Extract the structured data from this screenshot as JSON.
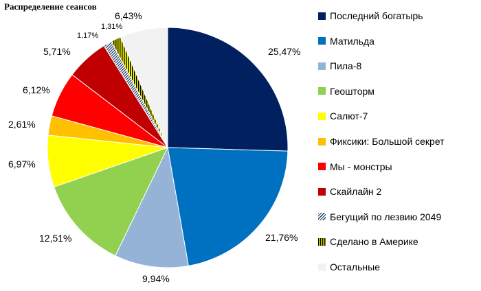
{
  "chart_data": {
    "type": "pie",
    "title": "Распределение сеансов",
    "labels": [
      "Последний богатырь",
      "Матильда",
      "Пила-8",
      "Геошторм",
      "Салют-7",
      "Фиксики: Большой секрет",
      "Мы - монстры",
      "Скайлайн 2",
      "Бегущий по лезвию 2049",
      "Сделано в Америке",
      "Остальные"
    ],
    "values": [
      25.47,
      21.76,
      9.94,
      12.51,
      6.97,
      2.61,
      6.12,
      5.71,
      1.17,
      1.31,
      6.43
    ],
    "value_labels": [
      "25,47%",
      "21,76%",
      "9,94%",
      "12,51%",
      "6,97%",
      "2,61%",
      "6,12%",
      "5,71%",
      "1,17%",
      "1,31%",
      "6,43%"
    ],
    "colors": [
      "#002060",
      "#0070C0",
      "#95B3D7",
      "#92D050",
      "#FFFF00",
      "#FFC000",
      "#FF0000",
      "#C00000",
      "#1F3864",
      "#C9B400",
      "#F2F2F2"
    ],
    "patterns": [
      "solid",
      "solid",
      "solid",
      "solid",
      "solid",
      "solid",
      "solid",
      "solid",
      "diagonal-stripes",
      "vertical-stripes",
      "solid"
    ],
    "start": "12 o'clock",
    "direction": "clockwise",
    "legend_position": "right"
  }
}
